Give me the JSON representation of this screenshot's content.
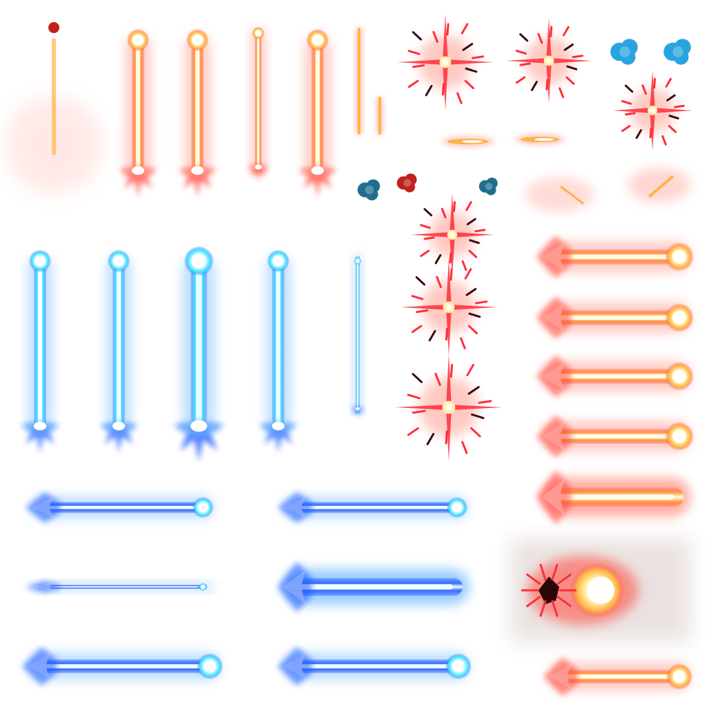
{
  "sheet": {
    "background": "#ffffff",
    "palette": {
      "fire_core": "#fffbe6",
      "fire_mid": "#ffb347",
      "fire_outer": "#ff4a3d",
      "fire_glow": "#ff8a7a",
      "ice_core": "#f2ffff",
      "ice_mid": "#41e3ff",
      "ice_outer": "#1e5bff",
      "ice_glow": "#6fb8ff",
      "spark_red": "#ff2d3a",
      "spark_dark": "#3a0a10",
      "smoke_teal": "#1f6f8c",
      "smoke_blue": "#2aa4e0",
      "smoke_red": "#c0221b"
    },
    "sprites": [
      {
        "name": "fire-trail-thin",
        "kind": "trail",
        "element": "fire"
      },
      {
        "name": "fire-beam-vertical",
        "kind": "beam",
        "element": "fire",
        "count": 4
      },
      {
        "name": "fire-needle-vertical",
        "kind": "needle",
        "element": "fire",
        "count": 2
      },
      {
        "name": "red-impact-spark",
        "kind": "spark",
        "element": "fire",
        "count": 6
      },
      {
        "name": "smoke-puff",
        "kind": "smoke",
        "count": 6
      },
      {
        "name": "fire-bolt-small",
        "kind": "bolt",
        "element": "fire",
        "count": 2
      },
      {
        "name": "fire-ember-streak",
        "kind": "ember",
        "element": "fire",
        "count": 2
      },
      {
        "name": "ice-beam-vertical",
        "kind": "beam",
        "element": "ice",
        "count": 5
      },
      {
        "name": "fire-beam-horizontal",
        "kind": "beam",
        "element": "fire",
        "count": 6
      },
      {
        "name": "ice-beam-horizontal",
        "kind": "beam",
        "element": "ice",
        "count": 6
      },
      {
        "name": "fire-explosion-burst",
        "kind": "explosion",
        "element": "fire"
      }
    ]
  }
}
